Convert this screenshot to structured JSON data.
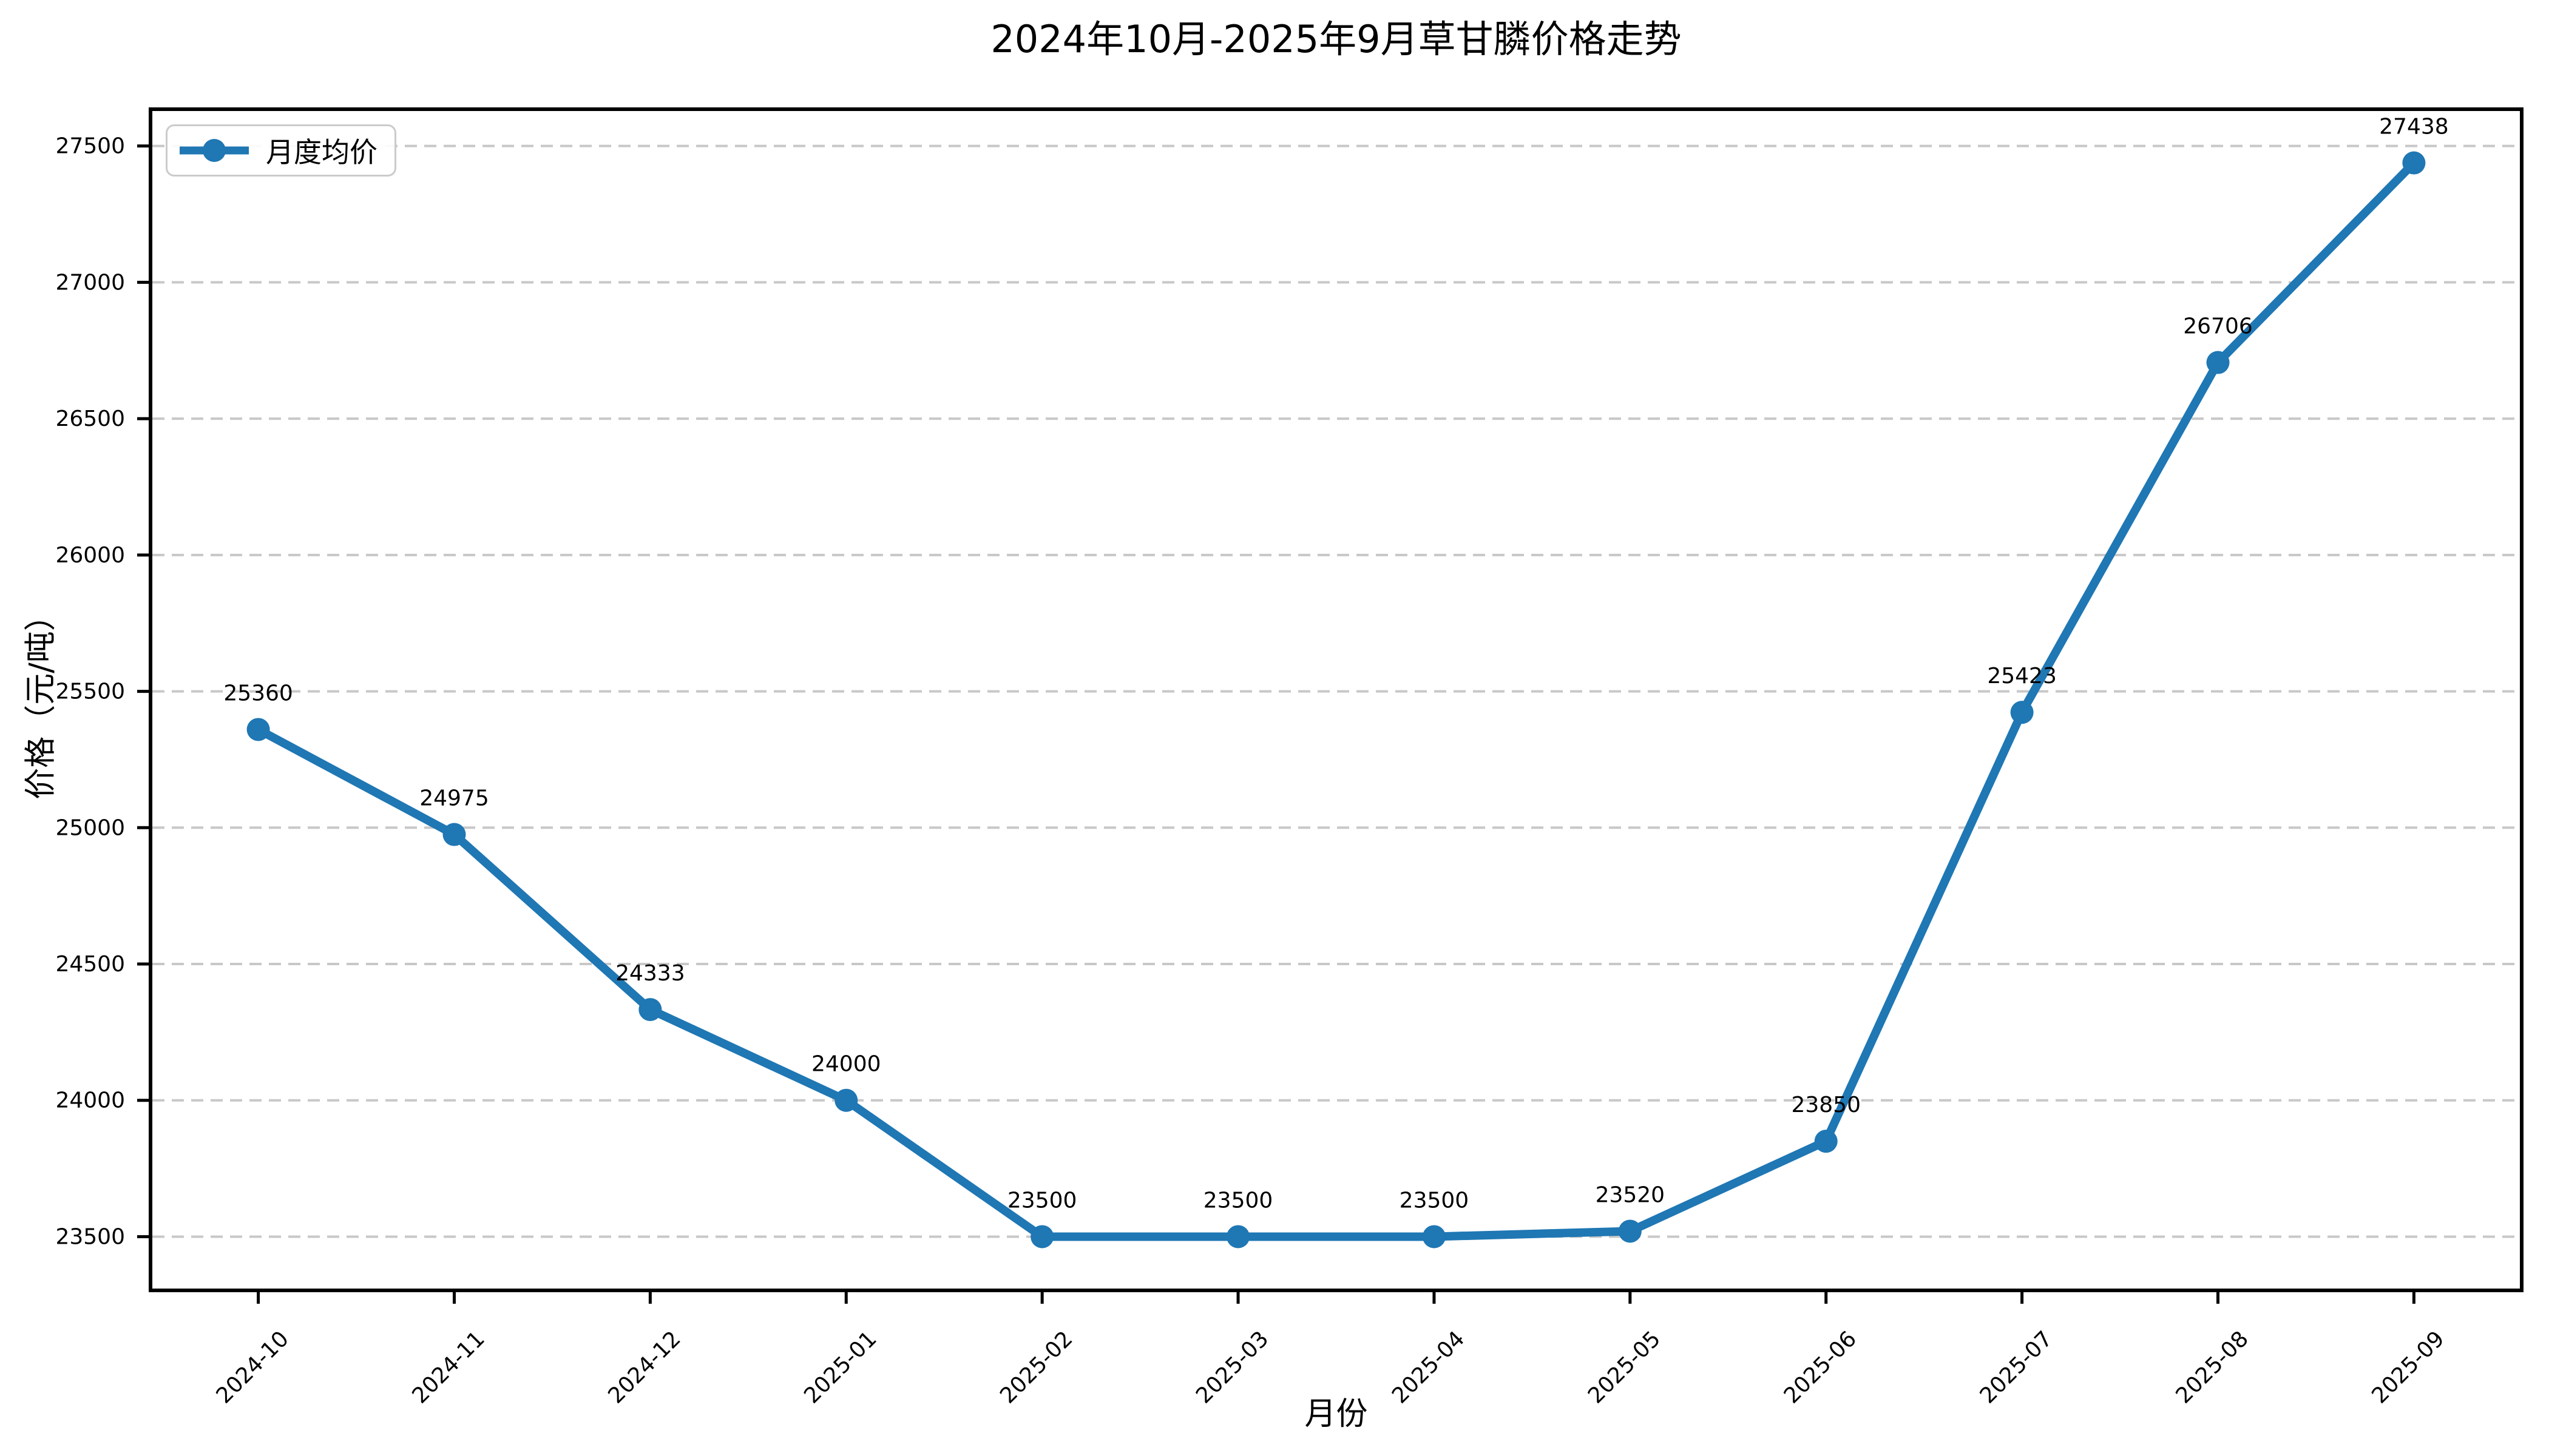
{
  "chart_data": {
    "type": "line",
    "title": "2024年10月-2025年9月草甘膦价格走势",
    "xlabel": "月份",
    "ylabel": "价格（元/吨）",
    "categories": [
      "2024-10",
      "2024-11",
      "2024-12",
      "2025-01",
      "2025-02",
      "2025-03",
      "2025-04",
      "2025-05",
      "2025-06",
      "2025-07",
      "2025-08",
      "2025-09"
    ],
    "series": [
      {
        "name": "月度均价",
        "values": [
          25360,
          24975,
          24333,
          24000,
          23500,
          23500,
          23500,
          23520,
          23850,
          25423,
          26706,
          27438
        ]
      }
    ],
    "point_labels": [
      "25360",
      "24975",
      "24333",
      "24000",
      "23500",
      "23500",
      "23500",
      "23520",
      "23850",
      "25423",
      "26706",
      "27438"
    ],
    "yticks": [
      23500,
      24000,
      24500,
      25000,
      25500,
      26000,
      26500,
      27000,
      27500
    ],
    "ylim": [
      23303,
      27635
    ],
    "xlim_units": [
      -0.55,
      11.55
    ],
    "grid": "horizontal dashed",
    "legend_position": "upper left",
    "marker": "circle",
    "colors": {
      "line": "#1f77b4",
      "marker": "#1f77b4",
      "grid": "#c8c8c8",
      "spine": "#000000",
      "text": "#000000",
      "legend_border": "#cbcbcb",
      "background": "#ffffff"
    }
  }
}
